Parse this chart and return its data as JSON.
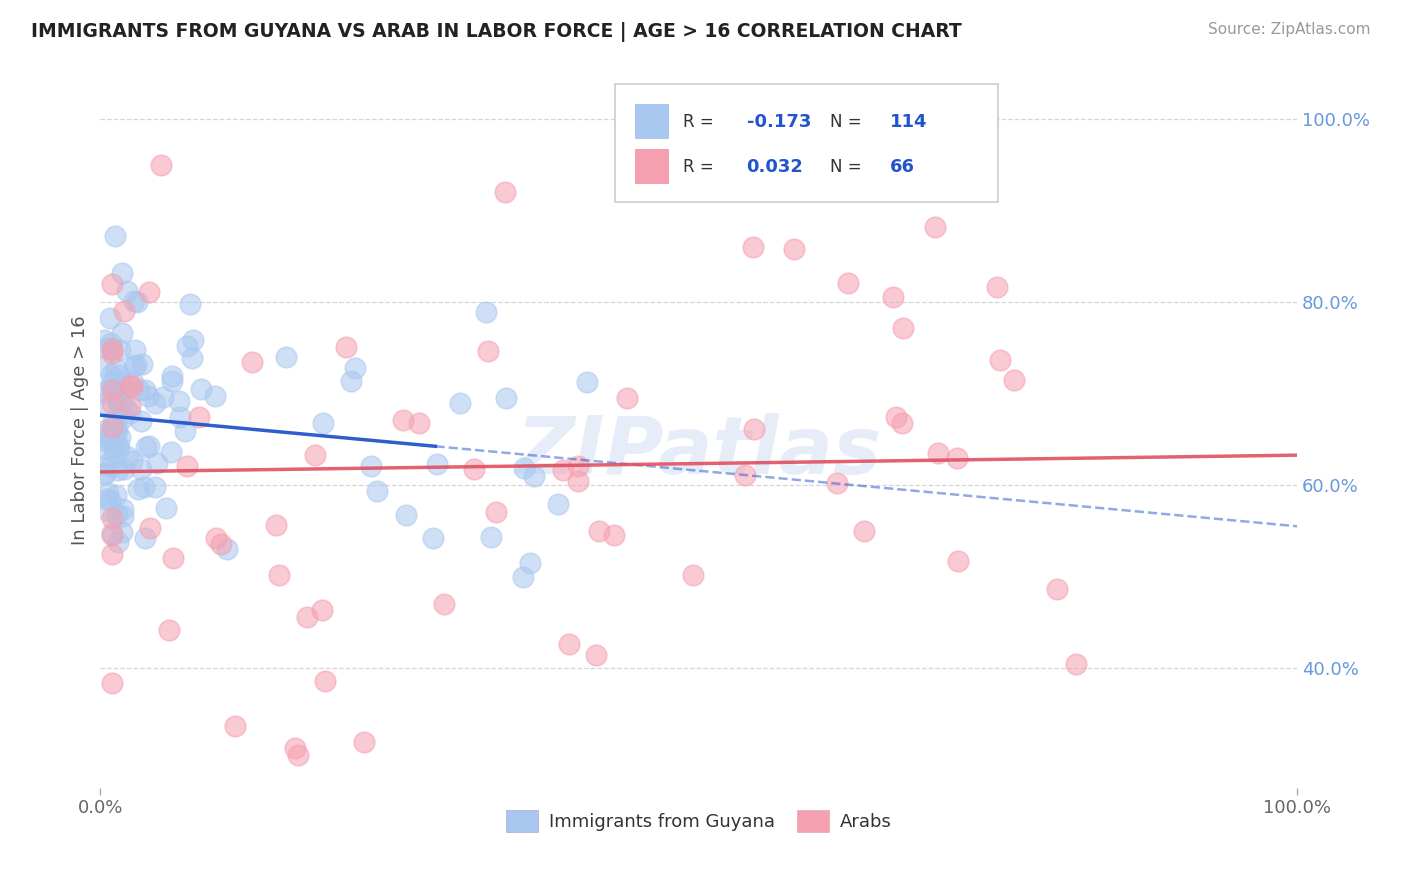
{
  "title": "IMMIGRANTS FROM GUYANA VS ARAB IN LABOR FORCE | AGE > 16 CORRELATION CHART",
  "source": "Source: ZipAtlas.com",
  "ylabel": "In Labor Force | Age > 16",
  "x_tick_labels": [
    "0.0%",
    "100.0%"
  ],
  "y_tick_labels_right": [
    "40.0%",
    "60.0%",
    "80.0%",
    "100.0%"
  ],
  "legend_bottom": [
    "Immigrants from Guyana",
    "Arabs"
  ],
  "guyana_R": "-0.173",
  "guyana_N": "114",
  "arab_R": "0.032",
  "arab_N": "66",
  "guyana_color": "#a8c8f0",
  "arab_color": "#f5a0b0",
  "guyana_line_color": "#2255cc",
  "arab_line_color": "#e05060",
  "background_color": "#ffffff",
  "grid_color": "#cccccc",
  "watermark": "ZIPatlas",
  "title_color": "#222222",
  "right_tick_color": "#6699dd",
  "bottom_tick_color": "#666666",
  "xlim": [
    0.0,
    1.0
  ],
  "ylim": [
    0.27,
    1.05
  ],
  "yticks": [
    0.4,
    0.6,
    0.8,
    1.0
  ],
  "xticks": [
    0.0,
    1.0
  ]
}
